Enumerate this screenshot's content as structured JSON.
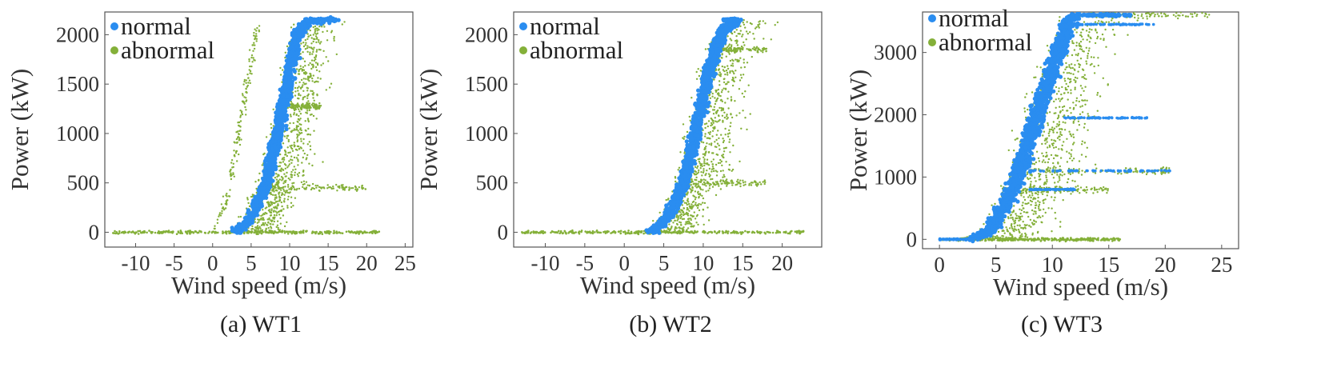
{
  "colors": {
    "normal": "#2a8df0",
    "abnormal": "#84b039"
  },
  "legend": [
    "normal",
    "abnormal"
  ],
  "chart_data": [
    {
      "type": "scatter",
      "caption": "(a) WT1",
      "xlabel": "Wind speed (m/s)",
      "ylabel": "Power (kW)",
      "xlim": [
        -14,
        26
      ],
      "ylim": [
        -150,
        2230
      ],
      "xticks": [
        -10,
        -5,
        0,
        5,
        10,
        15,
        20,
        25
      ],
      "yticks": [
        0,
        500,
        1000,
        1500,
        2000
      ],
      "rated_power": 2150,
      "series": [
        {
          "name": "normal",
          "curve": [
            [
              3,
              0
            ],
            [
              5,
              150
            ],
            [
              7,
              500
            ],
            [
              8.5,
              1000
            ],
            [
              10,
              1600
            ],
            [
              11,
              2000
            ],
            [
              12,
              2120
            ],
            [
              16,
              2150
            ]
          ]
        },
        {
          "name": "abnormal",
          "clusters": [
            {
              "kind": "baseline",
              "x": [
                -13,
                22
              ],
              "y": 0
            },
            {
              "kind": "steep-curve",
              "points": [
                [
                  0,
                  0
                ],
                [
                  1.5,
                  250
                ],
                [
                  3,
                  800
                ],
                [
                  4.5,
                  1500
                ],
                [
                  5.8,
                  2100
                ]
              ]
            },
            {
              "kind": "plateau",
              "x": [
                7,
                20
              ],
              "y": 450
            },
            {
              "kind": "plateau",
              "x": [
                10,
                14
              ],
              "y": 1270
            },
            {
              "kind": "cloud",
              "x": [
                4,
                20
              ],
              "y": [
                0,
                2150
              ]
            }
          ]
        }
      ]
    },
    {
      "type": "scatter",
      "caption": "(b) WT2",
      "xlabel": "Wind speed (m/s)",
      "ylabel": "Power (kW)",
      "xlim": [
        -14,
        25
      ],
      "ylim": [
        -150,
        2230
      ],
      "xticks": [
        -10,
        -5,
        0,
        5,
        10,
        15,
        20
      ],
      "yticks": [
        0,
        500,
        1000,
        1500,
        2000
      ],
      "rated_power": 2150,
      "series": [
        {
          "name": "normal",
          "curve": [
            [
              3.5,
              0
            ],
            [
              5.5,
              150
            ],
            [
              7.5,
              500
            ],
            [
              9,
              1000
            ],
            [
              10.5,
              1550
            ],
            [
              11.5,
              1850
            ],
            [
              12.5,
              2050
            ],
            [
              14.5,
              2150
            ]
          ]
        },
        {
          "name": "abnormal",
          "clusters": [
            {
              "kind": "baseline",
              "x": [
                -13,
                23
              ],
              "y": 0
            },
            {
              "kind": "plateau",
              "x": [
                8,
                18
              ],
              "y": 500
            },
            {
              "kind": "plateau",
              "x": [
                12,
                18
              ],
              "y": 1850
            },
            {
              "kind": "cloud",
              "x": [
                3,
                20
              ],
              "y": [
                0,
                2150
              ]
            }
          ]
        }
      ]
    },
    {
      "type": "scatter",
      "caption": "(c) WT3",
      "xlabel": "Wind speed (m/s)",
      "ylabel": "Power (kW)",
      "xlim": [
        -1.5,
        26.5
      ],
      "ylim": [
        -150,
        3650
      ],
      "xticks": [
        0,
        5,
        10,
        15,
        20,
        25
      ],
      "yticks": [
        0,
        1000,
        2000,
        3000
      ],
      "rated_power": 3600,
      "series": [
        {
          "name": "normal",
          "curve": [
            [
              3,
              0
            ],
            [
              4.5,
              150
            ],
            [
              6,
              600
            ],
            [
              7.5,
              1300
            ],
            [
              9,
              2200
            ],
            [
              10.5,
              3000
            ],
            [
              11.5,
              3500
            ],
            [
              12,
              3600
            ],
            [
              17,
              3600
            ]
          ],
          "plateaus": [
            {
              "x": [
                0,
                3
              ],
              "y": 0
            },
            {
              "x": [
                11,
                18.5
              ],
              "y": 1950
            },
            {
              "x": [
                8,
                20.5
              ],
              "y": 1100
            },
            {
              "x": [
                8,
                12
              ],
              "y": 800
            },
            {
              "x": [
                12,
                19
              ],
              "y": 3450
            }
          ]
        },
        {
          "name": "abnormal",
          "clusters": [
            {
              "kind": "baseline",
              "x": [
                0,
                16
              ],
              "y": 0
            },
            {
              "kind": "plateau",
              "x": [
                8,
                20.5
              ],
              "y": 1100
            },
            {
              "kind": "plateau",
              "x": [
                7,
                15
              ],
              "y": 800
            },
            {
              "kind": "plateau",
              "x": [
                12,
                24
              ],
              "y": 3600
            },
            {
              "kind": "cloud",
              "x": [
                3,
                24
              ],
              "y": [
                0,
                3600
              ]
            }
          ]
        }
      ]
    }
  ]
}
